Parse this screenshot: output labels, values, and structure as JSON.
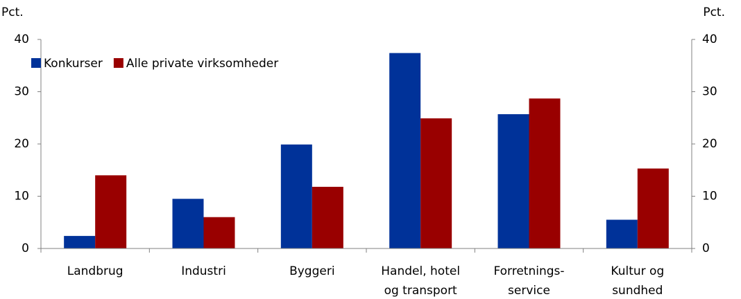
{
  "chart_data": {
    "type": "bar",
    "ylabel": "Pct.",
    "y2label": "Pct.",
    "categories": [
      [
        "Landbrug"
      ],
      [
        "Industri"
      ],
      [
        "Byggeri"
      ],
      [
        "Handel, hotel",
        "og transport"
      ],
      [
        "Forretnings-",
        "service"
      ],
      [
        "Kultur og",
        "sundhed"
      ]
    ],
    "series": [
      {
        "name": "Konkurser",
        "color": "#003299",
        "values": [
          2.4,
          9.5,
          19.9,
          37.4,
          25.7,
          5.5
        ]
      },
      {
        "name": "Alle private virksomheder",
        "color": "#990000",
        "values": [
          14,
          6,
          11.8,
          24.9,
          28.7,
          15.3
        ]
      }
    ],
    "ylim": [
      0,
      40
    ],
    "yticks": [
      0,
      10,
      20,
      30,
      40
    ],
    "y2lim": [
      0,
      40
    ],
    "y2ticks": [
      0,
      10,
      20,
      30,
      40
    ],
    "grid": false,
    "legend": "top-left"
  }
}
